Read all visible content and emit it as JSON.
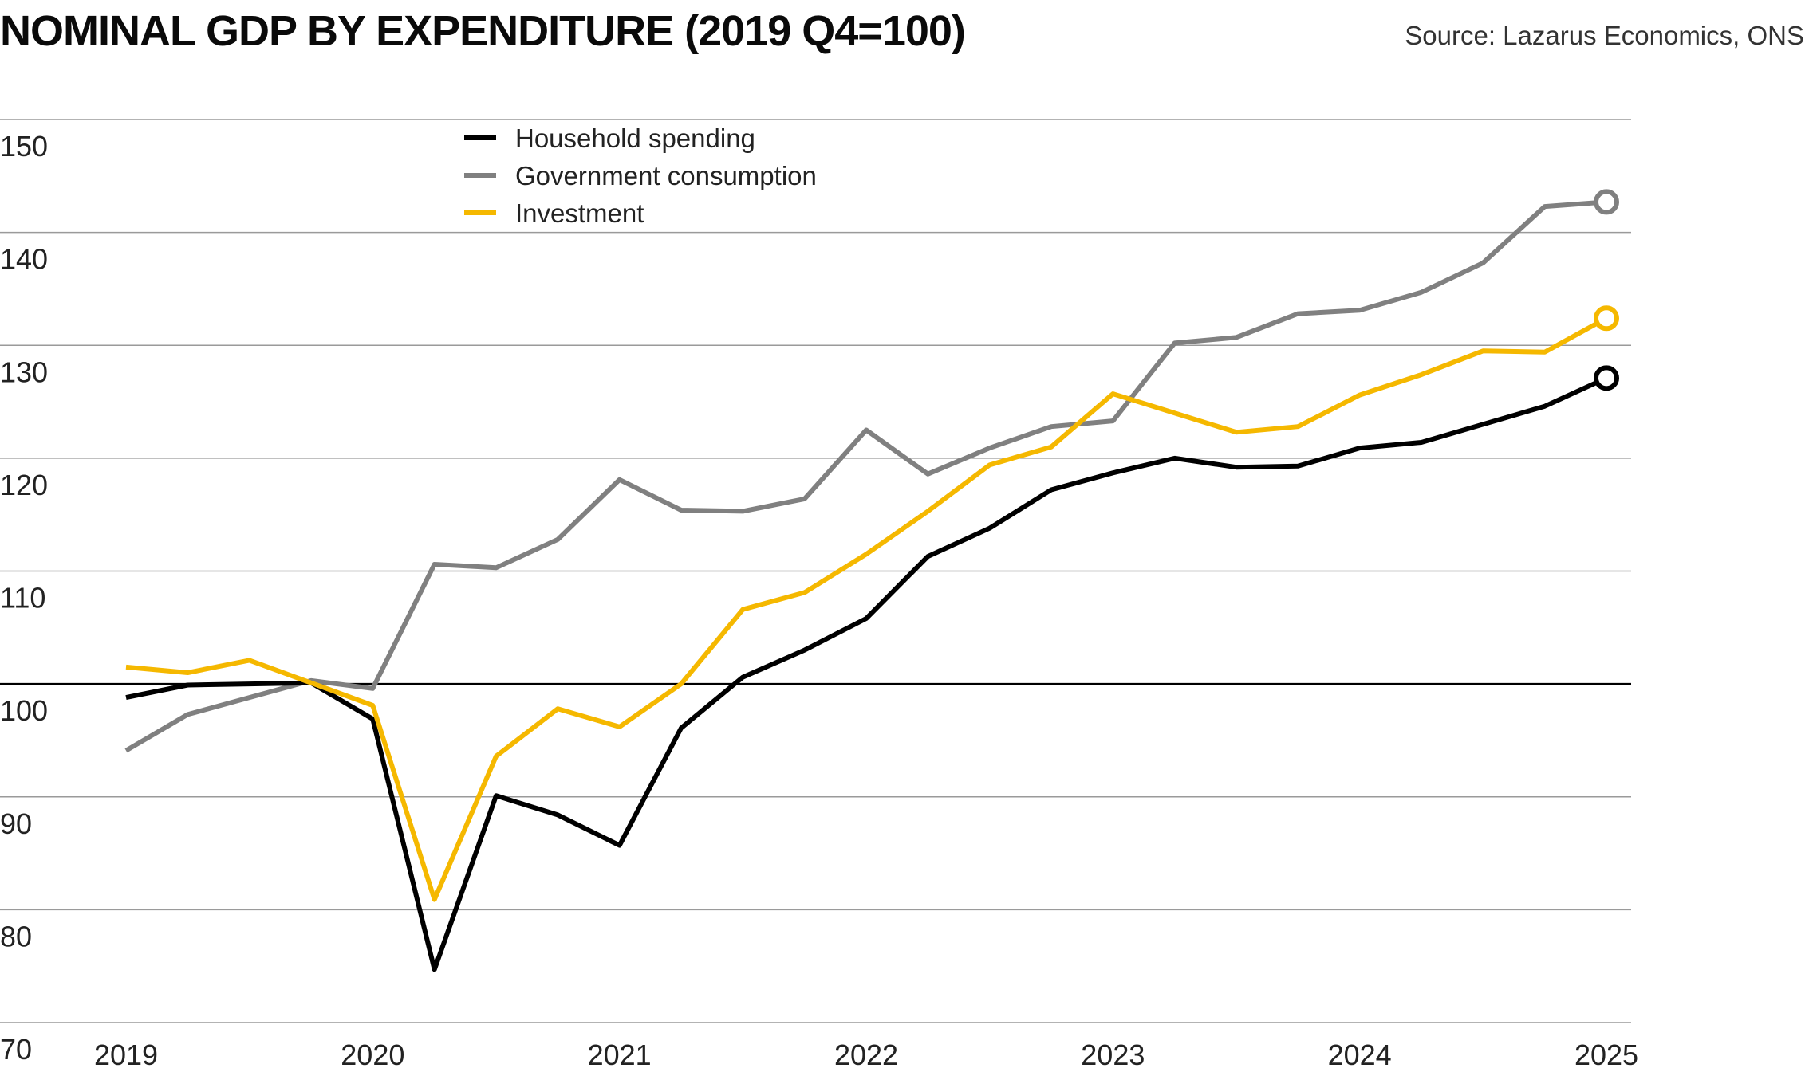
{
  "chart_data": {
    "type": "line",
    "title": "NOMINAL GDP BY EXPENDITURE (2019 Q4=100)",
    "source": "Source: Lazarus Economics, ONS",
    "xlabel": "",
    "ylabel": "",
    "ylim": [
      70,
      150
    ],
    "yticks": [
      150,
      140,
      130,
      120,
      110,
      100,
      90,
      80,
      70
    ],
    "xlim": [
      2019,
      2025
    ],
    "xticks": [
      "2019",
      "2020",
      "2021",
      "2022",
      "2023",
      "2024",
      "2025"
    ],
    "reference_line": 100,
    "grid": true,
    "legend_position": "top-center",
    "x": [
      2019.0,
      2019.25,
      2019.5,
      2019.75,
      2020.0,
      2020.25,
      2020.5,
      2020.75,
      2021.0,
      2021.25,
      2021.5,
      2021.75,
      2022.0,
      2022.25,
      2022.5,
      2022.75,
      2023.0,
      2023.25,
      2023.5,
      2023.75,
      2024.0,
      2024.25,
      2024.5,
      2024.75,
      2025.0
    ],
    "series": [
      {
        "name": "Household spending",
        "color": "#000000",
        "values": [
          98.8,
          99.9,
          100.0,
          100.1,
          96.9,
          74.7,
          90.1,
          88.4,
          85.7,
          96.1,
          100.6,
          103.0,
          105.8,
          111.3,
          113.8,
          117.2,
          118.7,
          120.0,
          119.2,
          119.3,
          120.9,
          121.4,
          123.0,
          124.6,
          127.1
        ],
        "end_marker": true
      },
      {
        "name": "Government consumption",
        "color": "#808080",
        "values": [
          94.1,
          97.3,
          98.8,
          100.3,
          99.6,
          110.6,
          110.3,
          112.8,
          118.1,
          115.4,
          115.3,
          116.4,
          122.5,
          118.6,
          120.9,
          122.8,
          123.3,
          130.2,
          130.7,
          132.8,
          133.1,
          134.7,
          137.3,
          142.3,
          142.7
        ],
        "end_marker": true
      },
      {
        "name": "Investment",
        "color": "#f5b800",
        "values": [
          101.5,
          101.0,
          102.1,
          100.1,
          98.1,
          80.9,
          93.6,
          97.8,
          96.2,
          100.0,
          106.6,
          108.1,
          111.5,
          115.3,
          119.4,
          121.0,
          125.7,
          124.0,
          122.3,
          122.8,
          125.6,
          127.4,
          129.5,
          129.4,
          132.4
        ],
        "end_marker": true
      }
    ]
  }
}
